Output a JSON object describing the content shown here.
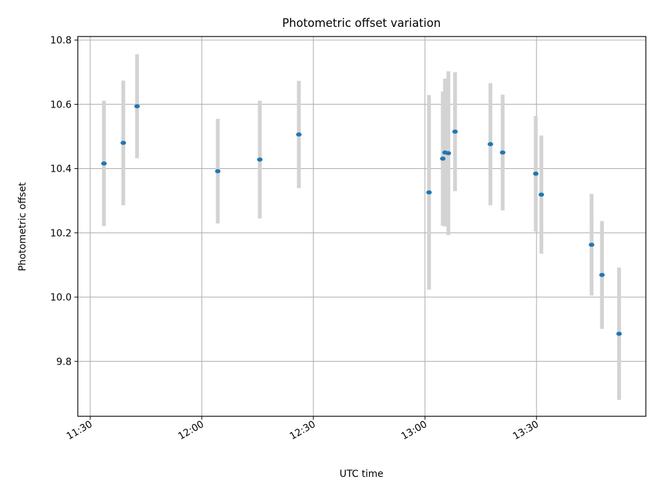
{
  "chart_data": {
    "type": "scatter",
    "title": "Photometric offset variation",
    "xlabel": "UTC time",
    "ylabel": "Photometric offset",
    "x_units": "minutes after 11:30 UTC",
    "xlim": [
      -3.33,
      149.4
    ],
    "ylim": [
      9.629,
      10.811
    ],
    "grid": true,
    "xticks": [
      {
        "value": 0,
        "label": "11:30"
      },
      {
        "value": 30,
        "label": "12:00"
      },
      {
        "value": 60,
        "label": "12:30"
      },
      {
        "value": 90,
        "label": "13:00"
      },
      {
        "value": 120,
        "label": "13:30"
      }
    ],
    "yticks": [
      {
        "value": 9.8,
        "label": "9.8"
      },
      {
        "value": 10.0,
        "label": "10.0"
      },
      {
        "value": 10.2,
        "label": "10.2"
      },
      {
        "value": 10.4,
        "label": "10.4"
      },
      {
        "value": 10.6,
        "label": "10.6"
      },
      {
        "value": 10.8,
        "label": "10.8"
      }
    ],
    "point_color": "#1f77b4",
    "errorbar_color": "#d3d3d3",
    "points": [
      {
        "x": 3.7,
        "y": 10.416,
        "err": 0.195
      },
      {
        "x": 8.9,
        "y": 10.48,
        "err": 0.194
      },
      {
        "x": 12.6,
        "y": 10.594,
        "err": 0.162
      },
      {
        "x": 34.3,
        "y": 10.392,
        "err": 0.163
      },
      {
        "x": 45.6,
        "y": 10.428,
        "err": 0.183
      },
      {
        "x": 56.1,
        "y": 10.506,
        "err": 0.167
      },
      {
        "x": 91.1,
        "y": 10.326,
        "err": 0.303
      },
      {
        "x": 94.8,
        "y": 10.431,
        "err": 0.209
      },
      {
        "x": 95.4,
        "y": 10.45,
        "err": 0.23
      },
      {
        "x": 96.3,
        "y": 10.448,
        "err": 0.255
      },
      {
        "x": 98.1,
        "y": 10.515,
        "err": 0.185
      },
      {
        "x": 107.6,
        "y": 10.476,
        "err": 0.19
      },
      {
        "x": 110.9,
        "y": 10.45,
        "err": 0.18
      },
      {
        "x": 119.8,
        "y": 10.384,
        "err": 0.18
      },
      {
        "x": 121.3,
        "y": 10.319,
        "err": 0.184
      },
      {
        "x": 134.8,
        "y": 10.163,
        "err": 0.158
      },
      {
        "x": 137.6,
        "y": 10.069,
        "err": 0.168
      },
      {
        "x": 142.2,
        "y": 9.886,
        "err": 0.206
      }
    ]
  }
}
